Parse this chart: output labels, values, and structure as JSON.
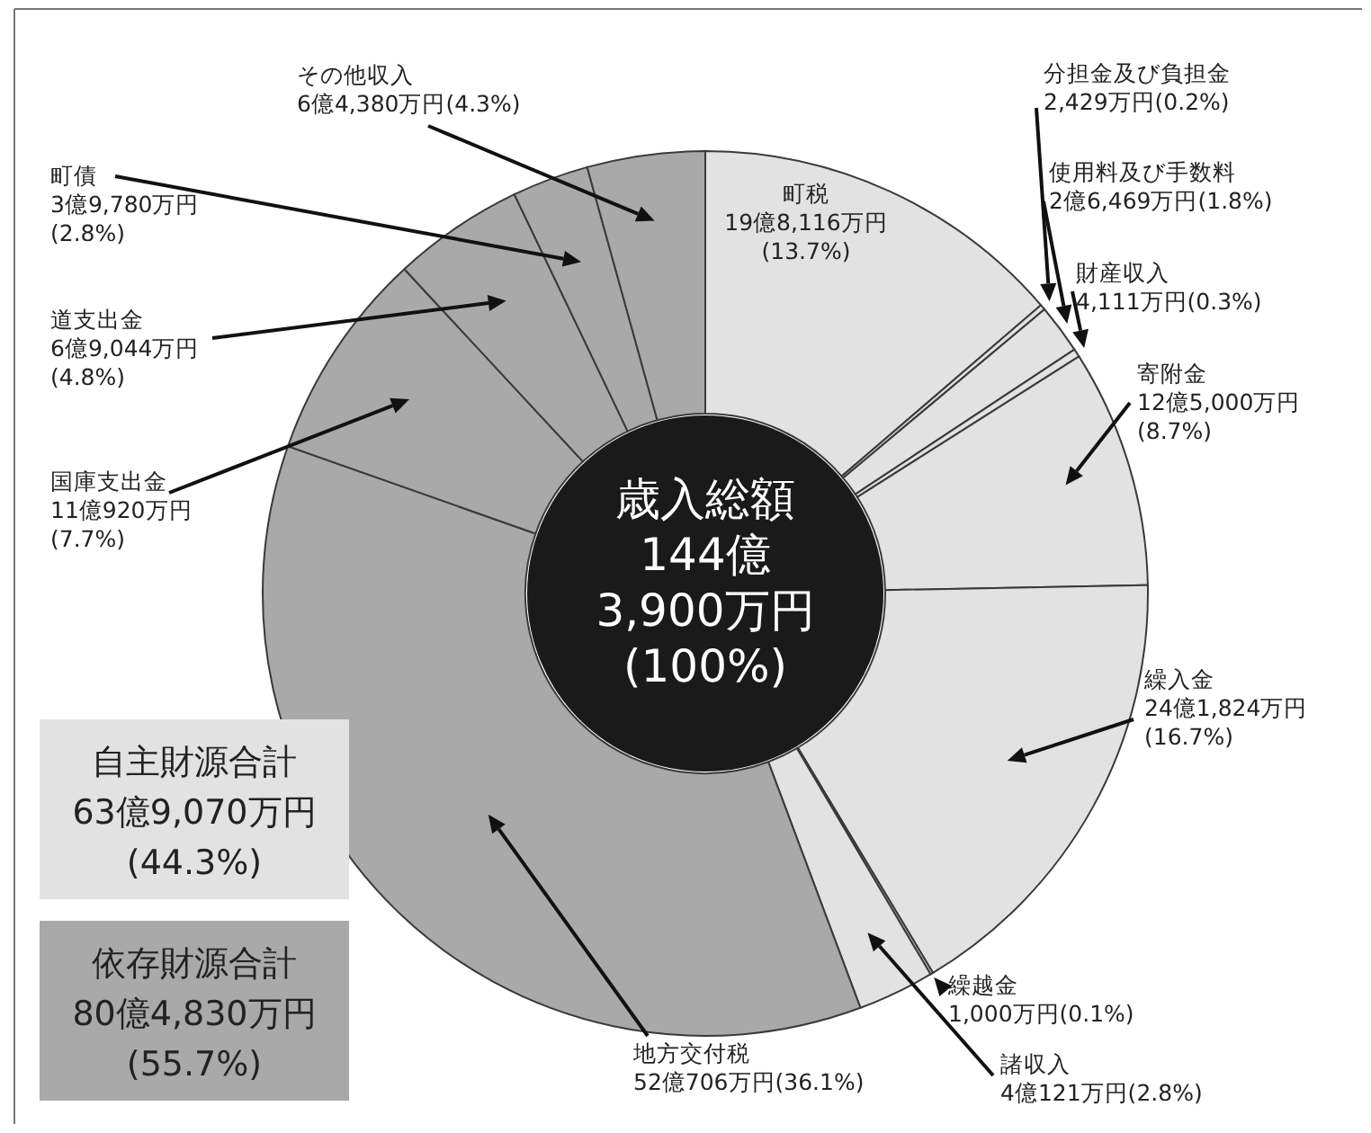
{
  "chart_data": {
    "type": "donut",
    "categories": [
      "町税",
      "分担金及び負担金",
      "使用料及び手数料",
      "財産収入",
      "寄附金",
      "繰入金",
      "繰越金",
      "諸収入",
      "地方交付税",
      "国庫支出金",
      "道支出金",
      "町債",
      "その他収入"
    ],
    "values": [
      13.7,
      0.2,
      1.8,
      0.3,
      8.7,
      16.7,
      0.1,
      2.8,
      36.1,
      7.7,
      4.8,
      2.8,
      4.3
    ],
    "value_labels": [
      "19億8,116万円\n(13.7%)",
      "2,429万円(0.2%)",
      "2億6,469万円(1.8%)",
      "4,111万円(0.3%)",
      "12億5,000万円\n(8.7%)",
      "24億1,824万円\n(16.7%)",
      "1,000万円(0.1%)",
      "4億121万円(2.8%)",
      "52億706万円(36.1%)",
      "11億920万円\n(7.7%)",
      "6億9,044万円\n(4.8%)",
      "3億9,780万円\n(2.8%)",
      "6億4,380万円(4.3%)"
    ],
    "colors": [
      "#e2e2e2",
      "#e2e2e2",
      "#e2e2e2",
      "#e2e2e2",
      "#e2e2e2",
      "#e2e2e2",
      "#e2e2e2",
      "#e2e2e2",
      "#a9a9a9",
      "#a9a9a9",
      "#a9a9a9",
      "#a9a9a9",
      "#a9a9a9"
    ],
    "annotations": [
      "歳入総額\n144億\n3,900万円\n(100%)",
      "自主財源合計\n63億9,070万円\n(44.3%)",
      "依存財源合計\n80億4,830万円\n(55.7%)"
    ]
  }
}
